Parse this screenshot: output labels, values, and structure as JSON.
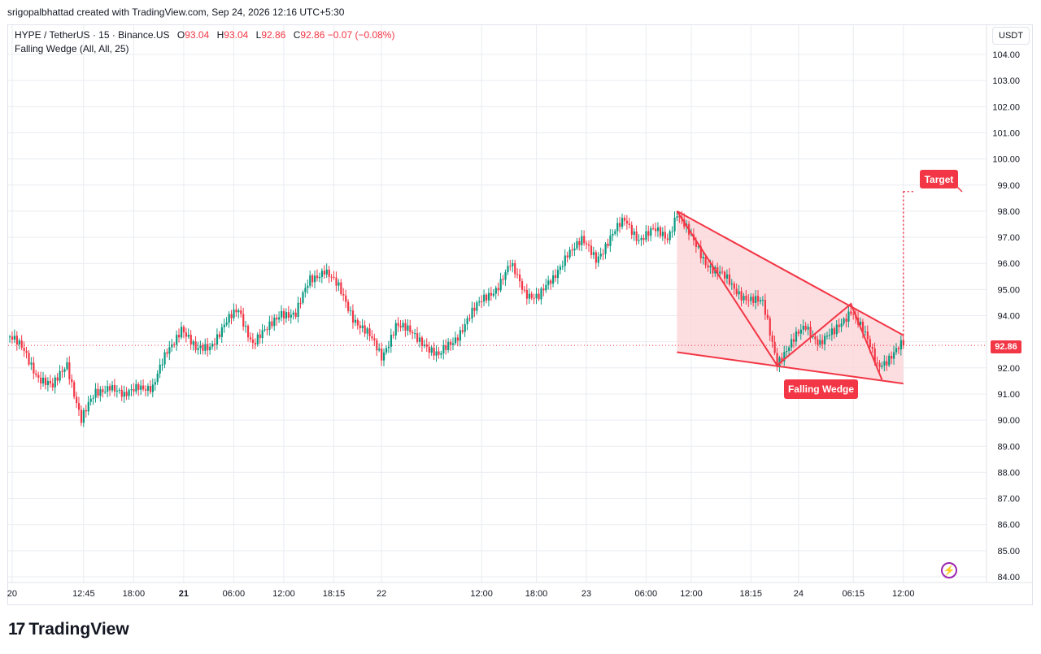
{
  "attribution": "srigopalbhattad created with TradingView.com, Sep 24, 2026 12:16 UTC+5:30",
  "legend": {
    "symbol": "HYPE / TetherUS · 15 · Binance.US",
    "o_label": "O",
    "o_value": "93.04",
    "h_label": "H",
    "h_value": "93.04",
    "l_label": "L",
    "l_value": "92.86",
    "c_label": "C",
    "c_value": "92.86",
    "change": "−0.07 (−0.08%)",
    "indicator": "Falling Wedge (All, All, 25)"
  },
  "currency": "USDT",
  "last_price": "92.86",
  "annotations": {
    "target": "Target",
    "pattern": "Falling Wedge"
  },
  "brand": {
    "mark": "17",
    "name": "TradingView"
  },
  "colors": {
    "up": "#089981",
    "down": "#f23645",
    "wedge_fill": "#fbd7da",
    "grid": "#e9ecf1"
  },
  "icons": {
    "bolt": "lightning-icon"
  },
  "chart_data": {
    "type": "candlestick",
    "ylim": [
      84.0,
      104.0
    ],
    "y_ticks": [
      "104.00",
      "103.00",
      "102.00",
      "101.00",
      "100.00",
      "99.00",
      "98.00",
      "97.00",
      "96.00",
      "95.00",
      "94.00",
      "93.00",
      "92.00",
      "91.00",
      "90.00",
      "89.00",
      "88.00",
      "87.00",
      "86.00",
      "85.00",
      "84.00"
    ],
    "x_ticks": [
      {
        "label": "20",
        "bold": false,
        "i": 1
      },
      {
        "label": "12:45",
        "bold": false,
        "i": 31
      },
      {
        "label": "18:00",
        "bold": false,
        "i": 52
      },
      {
        "label": "21",
        "bold": true,
        "i": 73
      },
      {
        "label": "06:00",
        "bold": false,
        "i": 94
      },
      {
        "label": "12:00",
        "bold": false,
        "i": 115
      },
      {
        "label": "18:15",
        "bold": false,
        "i": 136
      },
      {
        "label": "22",
        "bold": false,
        "i": 156
      },
      {
        "label": "12:00",
        "bold": false,
        "i": 198
      },
      {
        "label": "18:00",
        "bold": false,
        "i": 221
      },
      {
        "label": "23",
        "bold": false,
        "i": 242
      },
      {
        "label": "06:00",
        "bold": false,
        "i": 267
      },
      {
        "label": "12:00",
        "bold": false,
        "i": 286
      },
      {
        "label": "18:15",
        "bold": false,
        "i": 311
      },
      {
        "label": "24",
        "bold": false,
        "i": 331
      },
      {
        "label": "06:15",
        "bold": false,
        "i": 354
      },
      {
        "label": "12:00",
        "bold": false,
        "i": 375
      }
    ],
    "last_price": 92.86,
    "wedge": {
      "upper": [
        {
          "i": 280,
          "y": 98.0
        },
        {
          "i": 375,
          "y": 93.25
        }
      ],
      "lower": [
        {
          "i": 280,
          "y": 92.6
        },
        {
          "i": 375,
          "y": 91.4
        }
      ],
      "zigzag": [
        {
          "i": 280,
          "y": 98.0
        },
        {
          "i": 322,
          "y": 92.1
        },
        {
          "i": 353,
          "y": 94.45
        },
        {
          "i": 366,
          "y": 91.55
        }
      ],
      "target_start": {
        "i": 375,
        "y": 93.25
      },
      "target_level": 98.75
    },
    "anchors": [
      [
        0,
        93.2
      ],
      [
        6,
        92.6
      ],
      [
        12,
        91.7
      ],
      [
        18,
        91.2
      ],
      [
        24,
        92.2
      ],
      [
        30,
        90.0
      ],
      [
        36,
        91.0
      ],
      [
        42,
        91.4
      ],
      [
        48,
        90.8
      ],
      [
        54,
        91.4
      ],
      [
        60,
        91.2
      ],
      [
        66,
        92.6
      ],
      [
        72,
        93.6
      ],
      [
        78,
        92.6
      ],
      [
        84,
        92.9
      ],
      [
        90,
        93.6
      ],
      [
        96,
        94.2
      ],
      [
        102,
        93.0
      ],
      [
        108,
        93.4
      ],
      [
        114,
        94.2
      ],
      [
        120,
        94.0
      ],
      [
        126,
        95.4
      ],
      [
        132,
        95.8
      ],
      [
        138,
        95.0
      ],
      [
        144,
        94.0
      ],
      [
        150,
        93.3
      ],
      [
        156,
        92.4
      ],
      [
        162,
        93.7
      ],
      [
        168,
        93.3
      ],
      [
        174,
        93.0
      ],
      [
        180,
        92.4
      ],
      [
        186,
        93.0
      ],
      [
        192,
        93.9
      ],
      [
        198,
        94.5
      ],
      [
        204,
        95.1
      ],
      [
        210,
        95.9
      ],
      [
        216,
        94.9
      ],
      [
        222,
        94.8
      ],
      [
        228,
        95.3
      ],
      [
        234,
        96.5
      ],
      [
        240,
        96.8
      ],
      [
        246,
        96.2
      ],
      [
        252,
        97.0
      ],
      [
        258,
        97.6
      ],
      [
        264,
        97.0
      ],
      [
        270,
        97.2
      ],
      [
        276,
        97.0
      ],
      [
        280,
        98.0
      ],
      [
        286,
        96.9
      ],
      [
        292,
        96.1
      ],
      [
        298,
        95.6
      ],
      [
        304,
        95.0
      ],
      [
        310,
        94.7
      ],
      [
        316,
        94.4
      ],
      [
        322,
        92.3
      ],
      [
        328,
        92.9
      ],
      [
        334,
        93.6
      ],
      [
        340,
        93.0
      ],
      [
        346,
        93.3
      ],
      [
        353,
        94.3
      ],
      [
        358,
        93.4
      ],
      [
        364,
        92.1
      ],
      [
        370,
        92.5
      ],
      [
        375,
        92.86
      ]
    ]
  }
}
